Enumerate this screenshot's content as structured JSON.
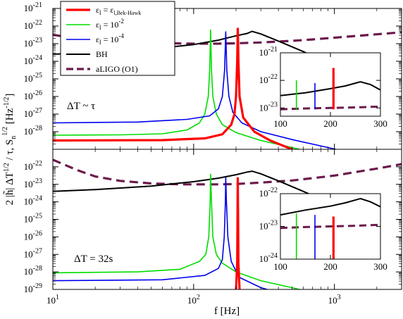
{
  "chart_data": {
    "type": "line",
    "xlabel": "f [Hz]",
    "ylabel": "2 |h̃| ΔT^1/2 / τ, S_n^1/2 [Hz^-1/2]",
    "x_scale": "log",
    "y_scale": "log",
    "xlim": [
      10,
      3000
    ],
    "x_ticks": [
      10,
      100,
      1000
    ],
    "x_tick_labels": [
      "10",
      "10",
      "10"
    ],
    "x_tick_exponents": [
      "1",
      "2",
      "3"
    ],
    "colors": {
      "eps_bek": "#ff0000",
      "eps_1e-2": "#00dd00",
      "eps_1e-4": "#0000ee",
      "bh": "#000000",
      "aligo": "#6b1a4b"
    },
    "legend": {
      "placement": "top-left",
      "entries": [
        {
          "key": "eps_bek",
          "base": "ε",
          "sub": "l",
          "eq": " = ε",
          "sub2": "l,Bek-Hawk",
          "sup": ""
        },
        {
          "key": "eps_1e-2",
          "base": "ε",
          "sub": "l",
          "eq": " = 10",
          "sub2": "",
          "sup": "-2"
        },
        {
          "key": "eps_1e-4",
          "base": "ε",
          "sub": "l",
          "eq": " = 10",
          "sub2": "",
          "sup": "-4"
        },
        {
          "key": "bh",
          "base": "BH",
          "sub": "",
          "eq": "",
          "sub2": "",
          "sup": ""
        },
        {
          "key": "aligo",
          "base": "aLIGO (O1)",
          "sub": "",
          "eq": "",
          "sub2": "",
          "sup": ""
        }
      ]
    },
    "panels": [
      {
        "id": "top",
        "annotation": "ΔT ~ τ",
        "ylim_log": [
          -29,
          -21
        ],
        "y_tick_exponents": [
          "-28",
          "-27",
          "-26",
          "-25",
          "-24",
          "-23",
          "-22",
          "-21"
        ],
        "series": [
          {
            "key": "aligo",
            "dashed": true,
            "points": [
              [
                10,
                -22.5
              ],
              [
                15,
                -22.7
              ],
              [
                20,
                -22.8
              ],
              [
                30,
                -22.88
              ],
              [
                50,
                -22.95
              ],
              [
                70,
                -22.98
              ],
              [
                100,
                -23.0
              ],
              [
                150,
                -23.0
              ],
              [
                200,
                -22.98
              ],
              [
                300,
                -22.93
              ],
              [
                500,
                -22.84
              ],
              [
                700,
                -22.76
              ],
              [
                1000,
                -22.66
              ],
              [
                2000,
                -22.47
              ],
              [
                3000,
                -22.35
              ]
            ]
          },
          {
            "key": "bh",
            "points": [
              [
                10,
                -23.6
              ],
              [
                20,
                -23.5
              ],
              [
                50,
                -23.3
              ],
              [
                100,
                -23.05
              ],
              [
                150,
                -22.8
              ],
              [
                200,
                -22.55
              ],
              [
                240,
                -22.42
              ],
              [
                260,
                -22.3
              ],
              [
                300,
                -22.45
              ],
              [
                400,
                -22.85
              ],
              [
                600,
                -23.45
              ],
              [
                1000,
                -24.3
              ],
              [
                1500,
                -24.9
              ],
              [
                2000,
                -25.3
              ]
            ]
          },
          {
            "key": "eps_1e-2",
            "points": [
              [
                10,
                -28.2
              ],
              [
                30,
                -28.18
              ],
              [
                60,
                -28.12
              ],
              [
                90,
                -27.9
              ],
              [
                110,
                -27.5
              ],
              [
                120,
                -27.0
              ],
              [
                127,
                -26.0
              ],
              [
                130,
                -24.5
              ],
              [
                132,
                -22.2
              ],
              [
                134,
                -24.5
              ],
              [
                137,
                -26.0
              ],
              [
                145,
                -27.0
              ],
              [
                160,
                -27.6
              ],
              [
                200,
                -28.05
              ],
              [
                300,
                -28.5
              ],
              [
                500,
                -28.9
              ],
              [
                800,
                -29.3
              ]
            ]
          },
          {
            "key": "eps_1e-4",
            "points": [
              [
                10,
                -27.5
              ],
              [
                40,
                -27.45
              ],
              [
                90,
                -27.3
              ],
              [
                130,
                -27.1
              ],
              [
                150,
                -26.7
              ],
              [
                160,
                -26.0
              ],
              [
                166,
                -24.5
              ],
              [
                169,
                -22.3
              ],
              [
                172,
                -24.5
              ],
              [
                178,
                -26.0
              ],
              [
                190,
                -26.9
              ],
              [
                220,
                -27.5
              ],
              [
                300,
                -28.0
              ],
              [
                500,
                -28.45
              ],
              [
                900,
                -28.9
              ],
              [
                1500,
                -29.3
              ]
            ]
          },
          {
            "key": "eps_bek",
            "thick": true,
            "points": [
              [
                10,
                -28.5
              ],
              [
                60,
                -28.48
              ],
              [
                120,
                -28.38
              ],
              [
                160,
                -28.15
              ],
              [
                185,
                -27.6
              ],
              [
                195,
                -27.0
              ],
              [
                200,
                -26.0
              ],
              [
                204,
                -24.0
              ],
              [
                206,
                -22.1
              ],
              [
                208,
                -24.0
              ],
              [
                212,
                -26.0
              ],
              [
                225,
                -27.2
              ],
              [
                270,
                -28.0
              ],
              [
                350,
                -28.5
              ],
              [
                500,
                -29.0
              ],
              [
                600,
                -29.4
              ]
            ]
          }
        ],
        "inset": {
          "xlim": [
            100,
            300
          ],
          "ylim_log": [
            -23.3,
            -21
          ],
          "x_tick_labels": [
            "100",
            "200",
            "300"
          ],
          "y_tick_exponents": [
            "-23",
            "-22",
            "-21"
          ],
          "series": [
            {
              "key": "aligo",
              "dashed": true,
              "points": [
                [
                  100,
                  -23.05
                ],
                [
                  150,
                  -23.02
                ],
                [
                  200,
                  -23.0
                ],
                [
                  250,
                  -22.98
                ],
                [
                  300,
                  -22.95
                ]
              ]
            },
            {
              "key": "bh",
              "points": [
                [
                  100,
                  -22.55
                ],
                [
                  150,
                  -22.45
                ],
                [
                  200,
                  -22.3
                ],
                [
                  230,
                  -22.2
                ],
                [
                  260,
                  -22.05
                ],
                [
                  280,
                  -22.15
                ],
                [
                  300,
                  -22.35
                ]
              ]
            },
            {
              "key": "eps_1e-2",
              "points": [
                [
                  132,
                  -23.05
                ],
                [
                  132,
                  -22.0
                ]
              ]
            },
            {
              "key": "eps_1e-4",
              "points": [
                [
                  169,
                  -23.05
                ],
                [
                  169,
                  -22.1
                ]
              ]
            },
            {
              "key": "eps_bek",
              "thick": true,
              "points": [
                [
                  206,
                  -23.05
                ],
                [
                  206,
                  -21.55
                ]
              ]
            }
          ]
        }
      },
      {
        "id": "bottom",
        "annotation": "ΔT = 32s",
        "ylim_log": [
          -29,
          -21
        ],
        "y_tick_exponents": [
          "-29",
          "-28",
          "-27",
          "-26",
          "-25",
          "-24",
          "-23",
          "-22"
        ],
        "series": [
          {
            "key": "aligo",
            "dashed": true,
            "points": [
              [
                10,
                -21.6
              ],
              [
                15,
                -22.2
              ],
              [
                20,
                -22.55
              ],
              [
                30,
                -22.8
              ],
              [
                50,
                -22.95
              ],
              [
                80,
                -23.0
              ],
              [
                100,
                -23.0
              ],
              [
                150,
                -23.0
              ],
              [
                200,
                -22.98
              ],
              [
                300,
                -22.9
              ],
              [
                500,
                -22.78
              ],
              [
                700,
                -22.65
              ],
              [
                1000,
                -22.5
              ],
              [
                2000,
                -22.1
              ],
              [
                3000,
                -21.85
              ]
            ]
          },
          {
            "key": "bh",
            "points": [
              [
                10,
                -23.4
              ],
              [
                20,
                -23.3
              ],
              [
                50,
                -23.1
              ],
              [
                100,
                -22.85
              ],
              [
                150,
                -22.65
              ],
              [
                200,
                -22.45
              ],
              [
                240,
                -22.3
              ],
              [
                260,
                -22.25
              ],
              [
                300,
                -22.4
              ],
              [
                400,
                -22.8
              ],
              [
                600,
                -23.4
              ],
              [
                1000,
                -24.2
              ],
              [
                1500,
                -24.8
              ],
              [
                2000,
                -25.2
              ]
            ]
          },
          {
            "key": "eps_1e-2",
            "points": [
              [
                10,
                -28.05
              ],
              [
                40,
                -28.0
              ],
              [
                80,
                -27.85
              ],
              [
                110,
                -27.4
              ],
              [
                122,
                -27.0
              ],
              [
                128,
                -26.0
              ],
              [
                131,
                -24.0
              ],
              [
                132,
                -22.4
              ],
              [
                134,
                -24.0
              ],
              [
                137,
                -26.0
              ],
              [
                145,
                -27.0
              ],
              [
                160,
                -27.5
              ],
              [
                200,
                -28.0
              ],
              [
                300,
                -28.5
              ],
              [
                500,
                -28.9
              ],
              [
                800,
                -29.3
              ]
            ]
          },
          {
            "key": "eps_1e-4",
            "points": [
              [
                10,
                -28.5
              ],
              [
                60,
                -28.45
              ],
              [
                120,
                -28.2
              ],
              [
                150,
                -27.8
              ],
              [
                160,
                -27.3
              ],
              [
                165,
                -26.0
              ],
              [
                168,
                -24.0
              ],
              [
                169,
                -22.6
              ],
              [
                171,
                -24.0
              ],
              [
                175,
                -26.0
              ],
              [
                185,
                -27.4
              ],
              [
                210,
                -28.3
              ],
              [
                300,
                -28.9
              ],
              [
                450,
                -29.3
              ]
            ]
          },
          {
            "key": "eps_bek",
            "thick": true,
            "points": [
              [
                190,
                -29.3
              ],
              [
                200,
                -29.0
              ],
              [
                204,
                -27.5
              ],
              [
                206,
                -22.6
              ],
              [
                208,
                -27.5
              ],
              [
                212,
                -29.0
              ],
              [
                220,
                -29.3
              ]
            ]
          }
        ],
        "inset": {
          "xlim": [
            100,
            300
          ],
          "ylim_log": [
            -24,
            -22
          ],
          "x_tick_labels": [
            "100",
            "200",
            "300"
          ],
          "y_tick_exponents": [
            "-24",
            "-23",
            "-22"
          ],
          "series": [
            {
              "key": "aligo",
              "dashed": true,
              "points": [
                [
                  100,
                  -23.05
                ],
                [
                  150,
                  -23.02
                ],
                [
                  200,
                  -23.0
                ],
                [
                  250,
                  -22.98
                ],
                [
                  300,
                  -22.95
                ]
              ]
            },
            {
              "key": "bh",
              "points": [
                [
                  100,
                  -22.65
                ],
                [
                  150,
                  -22.5
                ],
                [
                  200,
                  -22.38
                ],
                [
                  230,
                  -22.28
                ],
                [
                  260,
                  -22.15
                ],
                [
                  280,
                  -22.25
                ],
                [
                  300,
                  -22.4
                ]
              ]
            },
            {
              "key": "eps_1e-2",
              "points": [
                [
                  132,
                  -24.0
                ],
                [
                  132,
                  -22.6
                ]
              ]
            },
            {
              "key": "eps_1e-4",
              "points": [
                [
                  169,
                  -24.0
                ],
                [
                  169,
                  -22.65
                ]
              ]
            },
            {
              "key": "eps_bek",
              "thick": true,
              "points": [
                [
                  206,
                  -24.0
                ],
                [
                  206,
                  -22.7
                ]
              ]
            }
          ]
        }
      }
    ]
  }
}
